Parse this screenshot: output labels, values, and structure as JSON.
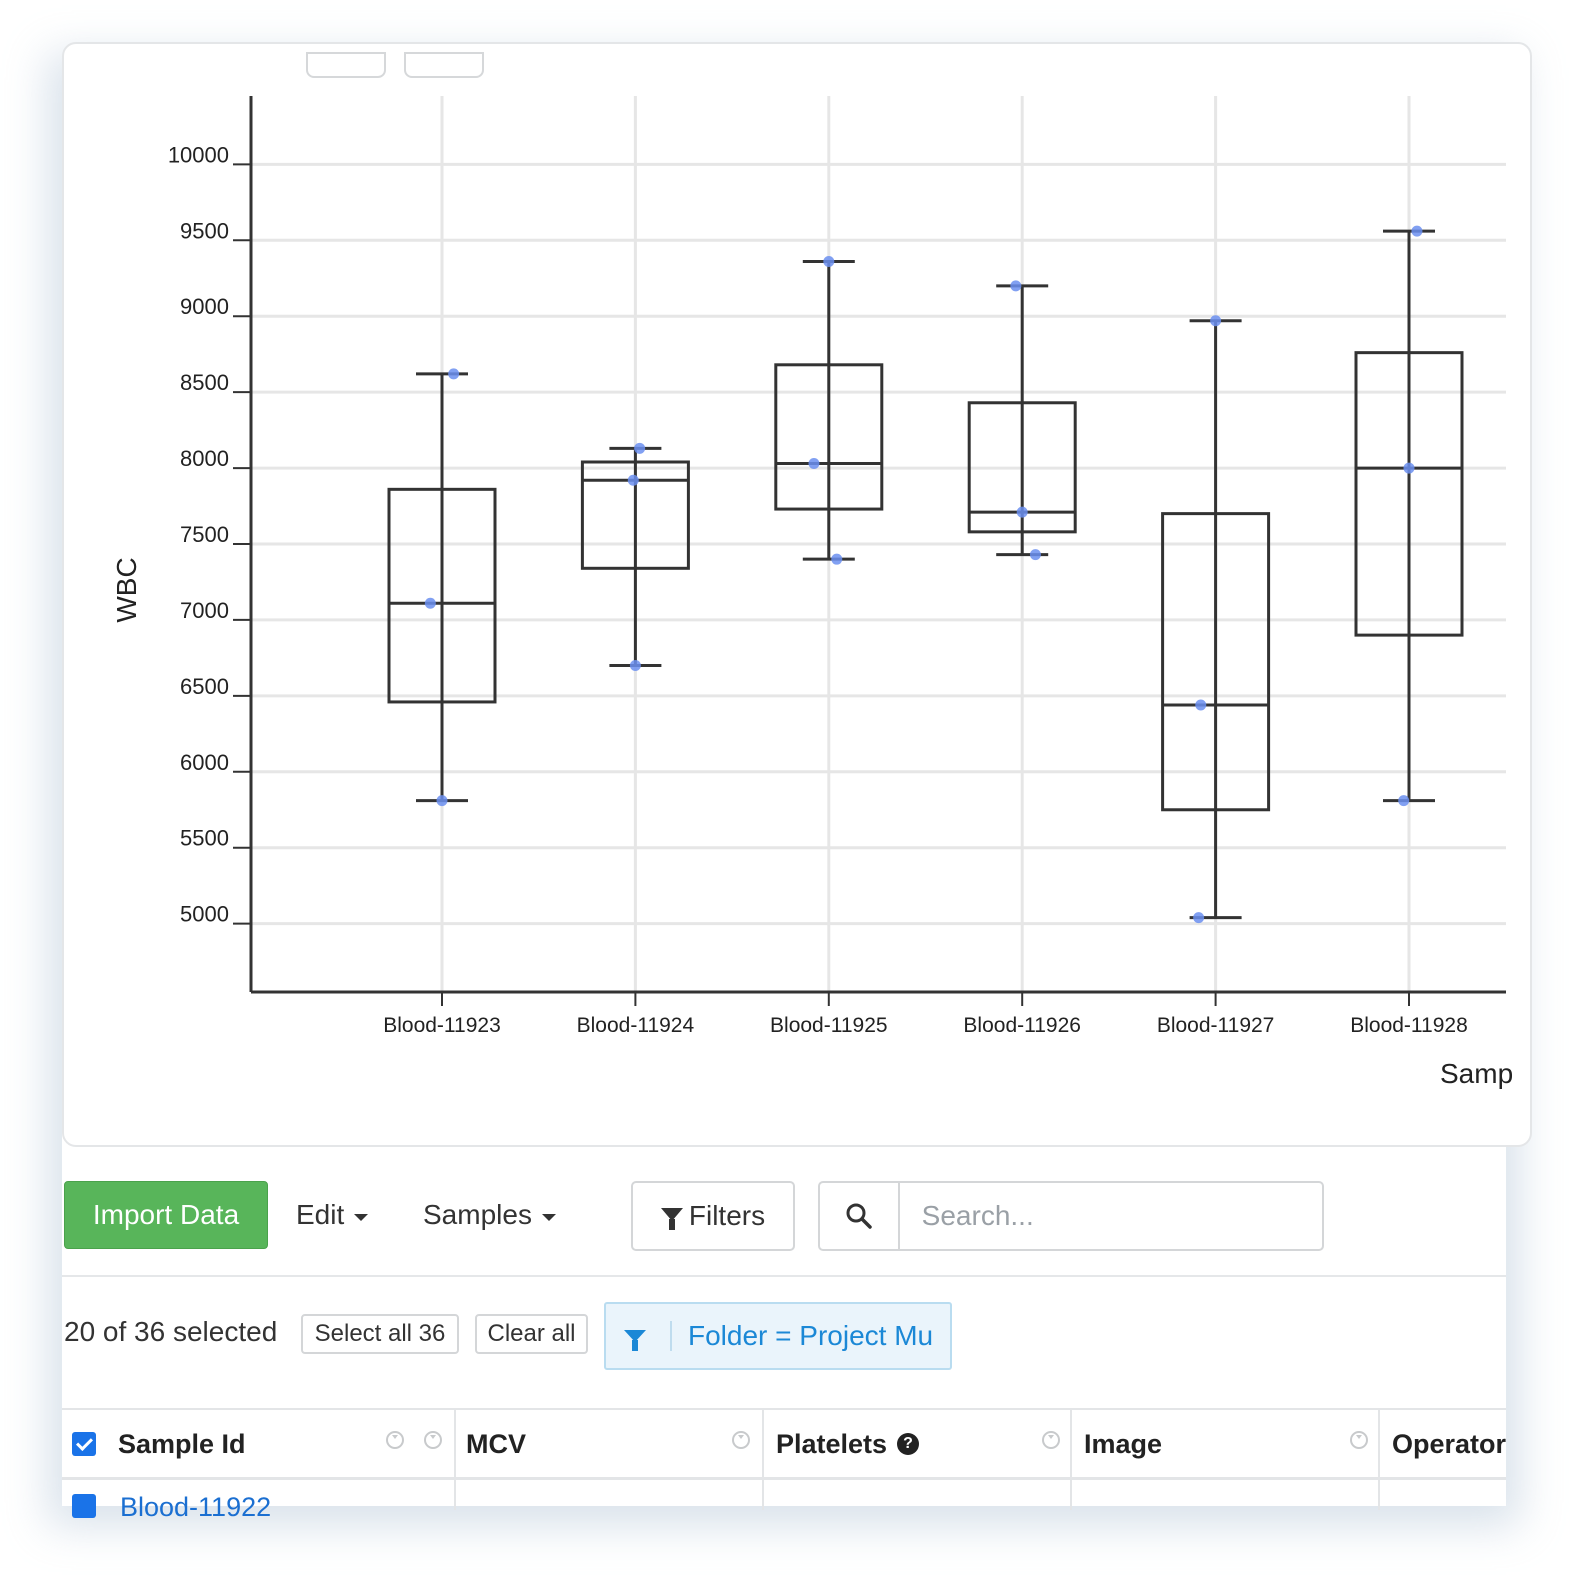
{
  "chart_data": {
    "type": "box",
    "ylabel": "WBC",
    "xlabel": "Samp",
    "yticks": [
      5000,
      5500,
      6000,
      6500,
      7000,
      7500,
      8000,
      8500,
      9000,
      9500,
      10000
    ],
    "ylim": [
      4550,
      10450
    ],
    "grid": true,
    "categories": [
      "Blood-11923",
      "Blood-11924",
      "Blood-11925",
      "Blood-11926",
      "Blood-11927",
      "Blood-11928"
    ],
    "boxes": [
      {
        "min": 5810,
        "q1": 6460,
        "median": 7110,
        "q3": 7860,
        "max": 8620
      },
      {
        "min": 6700,
        "q1": 7340,
        "median": 7920,
        "q3": 8040,
        "max": 8130
      },
      {
        "min": 7400,
        "q1": 7730,
        "median": 8030,
        "q3": 8680,
        "max": 9360
      },
      {
        "min": 7430,
        "q1": 7580,
        "median": 7710,
        "q3": 8430,
        "max": 9200
      },
      {
        "min": 5040,
        "q1": 5750,
        "median": 6440,
        "q3": 7700,
        "max": 8970
      },
      {
        "min": 5810,
        "q1": 6900,
        "median": 8000,
        "q3": 8760,
        "max": 9560
      }
    ],
    "points": [
      [
        [
          7110,
          -0.22
        ],
        [
          5810,
          0.0
        ],
        [
          8620,
          0.22
        ]
      ],
      [
        [
          6700,
          0.0
        ],
        [
          7920,
          -0.04
        ],
        [
          8130,
          0.08
        ]
      ],
      [
        [
          8030,
          -0.28
        ],
        [
          9360,
          0.0
        ],
        [
          7400,
          0.15
        ]
      ],
      [
        [
          9200,
          -0.12
        ],
        [
          7710,
          0.0
        ],
        [
          7430,
          0.25
        ]
      ],
      [
        [
          5040,
          -0.32
        ],
        [
          6440,
          -0.28
        ],
        [
          8970,
          0.0
        ]
      ],
      [
        [
          5810,
          -0.1
        ],
        [
          8000,
          0.0
        ],
        [
          9560,
          0.15
        ]
      ]
    ],
    "colors": {
      "box": "#333333",
      "point": "#6b8ff0",
      "grid": "#e6e6e6"
    }
  },
  "toolbar": {
    "import_label": "Import Data",
    "edit_label": "Edit",
    "samples_label": "Samples",
    "filters_label": "Filters",
    "search_placeholder": "Search..."
  },
  "selection": {
    "count_text": "20 of 36 selected",
    "select_all_label": "Select all 36",
    "clear_all_label": "Clear all",
    "filter_chip": "Folder = Project Mu"
  },
  "table": {
    "columns": [
      "Sample Id",
      "MCV",
      "Platelets",
      "Image",
      "Operator"
    ],
    "first_row_id": "Blood-11922"
  },
  "colors": {
    "import_green": "#58b55a",
    "link_blue": "#1b88d6"
  }
}
